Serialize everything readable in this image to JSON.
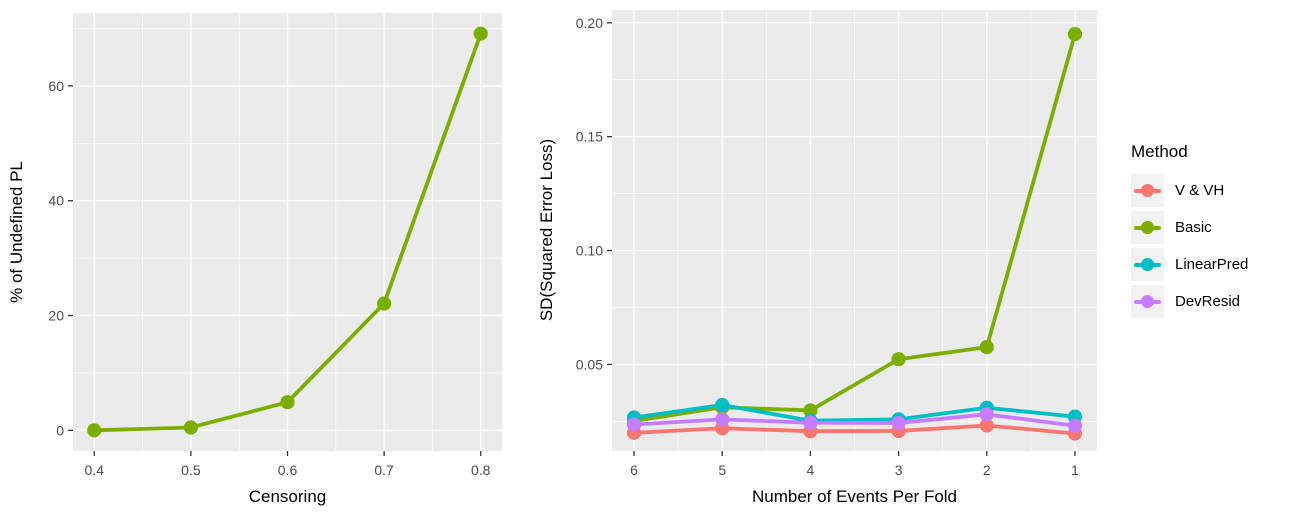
{
  "style": {
    "background": "#FFFFFF",
    "panel_bg": "#EBEBEB",
    "grid_color": "#FFFFFF",
    "tick_mark_color": "#333333",
    "tick_label_color": "#4D4D4D",
    "title_color": "#000000",
    "legend_key_bg": "#F2F2F2"
  },
  "legend": {
    "title": "Method",
    "position": "right",
    "items": [
      {
        "label": "V & VH",
        "color": "#F8766D"
      },
      {
        "label": "Basic",
        "color": "#7CAE00"
      },
      {
        "label": "LinearPred",
        "color": "#00BFC4"
      },
      {
        "label": "DevResid",
        "color": "#C77CFF"
      }
    ]
  },
  "chart_data": [
    {
      "type": "line",
      "title": "",
      "xlabel": "Censoring",
      "ylabel": "% of Undefined PL",
      "x": [
        0.4,
        0.5,
        0.6,
        0.7,
        0.8
      ],
      "series": [
        {
          "name": "Basic",
          "color": "#7CAE00",
          "values": [
            0.0,
            0.5,
            4.9,
            22.1,
            69.1
          ]
        }
      ],
      "xlim": [
        0.378,
        0.822
      ],
      "ylim": [
        -3.6,
        72.7
      ],
      "x_ticks": {
        "values": [
          0.4,
          0.5,
          0.6,
          0.7,
          0.8
        ],
        "labels": [
          "0.4",
          "0.5",
          "0.6",
          "0.7",
          "0.8"
        ]
      },
      "y_ticks": {
        "values": [
          0,
          20,
          40,
          60
        ],
        "labels": [
          "0",
          "20",
          "40",
          "60"
        ]
      },
      "x_minor": [
        0.45,
        0.55,
        0.65,
        0.75
      ],
      "y_minor": [
        10,
        30,
        50,
        70
      ],
      "grid": "on",
      "legend_shown": "no"
    },
    {
      "type": "line",
      "title": "",
      "xlabel": "Number of Events Per Fold",
      "ylabel": "SD(Squared Error Loss)",
      "x": [
        6,
        5,
        4,
        3,
        2,
        1
      ],
      "x_axis_reversed": true,
      "series": [
        {
          "name": "V & VH",
          "color": "#F8766D",
          "values": [
            0.02,
            0.022,
            0.0207,
            0.0208,
            0.0232,
            0.0197
          ]
        },
        {
          "name": "Basic",
          "color": "#7CAE00",
          "values": [
            0.0252,
            0.0312,
            0.0298,
            0.0523,
            0.0576,
            0.195
          ]
        },
        {
          "name": "LinearPred",
          "color": "#00BFC4",
          "values": [
            0.0267,
            0.0322,
            0.0253,
            0.0259,
            0.031,
            0.0271
          ]
        },
        {
          "name": "DevResid",
          "color": "#C77CFF",
          "values": [
            0.0236,
            0.0259,
            0.0244,
            0.0243,
            0.0281,
            0.0231
          ]
        }
      ],
      "xlim": [
        6.25,
        0.75
      ],
      "ylim": [
        0.012,
        0.2056
      ],
      "x_ticks": {
        "values": [
          6,
          5,
          4,
          3,
          2,
          1
        ],
        "labels": [
          "6",
          "5",
          "4",
          "3",
          "2",
          "1"
        ]
      },
      "y_ticks": {
        "values": [
          0.05,
          0.1,
          0.15,
          0.2
        ],
        "labels": [
          "0.05",
          "0.10",
          "0.15",
          "0.20"
        ]
      },
      "x_minor": [
        5.5,
        4.5,
        3.5,
        2.5,
        1.5
      ],
      "y_minor": [
        0.025,
        0.075,
        0.125,
        0.175
      ],
      "grid": "on",
      "legend_shown": "yes"
    }
  ]
}
